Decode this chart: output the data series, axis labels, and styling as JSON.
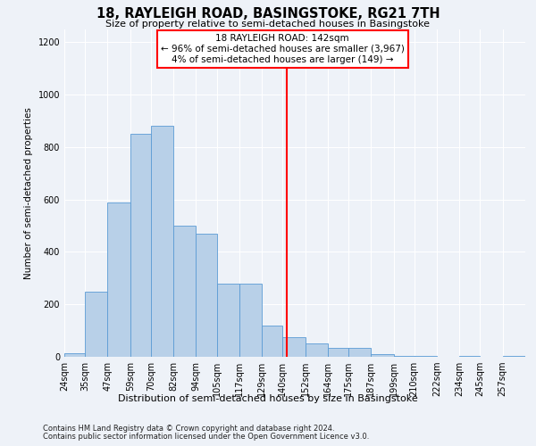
{
  "title": "18, RAYLEIGH ROAD, BASINGSTOKE, RG21 7TH",
  "subtitle": "Size of property relative to semi-detached houses in Basingstoke",
  "xlabel": "Distribution of semi-detached houses by size in Basingstoke",
  "ylabel": "Number of semi-detached properties",
  "footer1": "Contains HM Land Registry data © Crown copyright and database right 2024.",
  "footer2": "Contains public sector information licensed under the Open Government Licence v3.0.",
  "annotation_title": "18 RAYLEIGH ROAD: 142sqm",
  "annotation_line1": "← 96% of semi-detached houses are smaller (3,967)",
  "annotation_line2": "4% of semi-detached houses are larger (149) →",
  "property_size": 142,
  "bin_labels": [
    "24sqm",
    "35sqm",
    "47sqm",
    "59sqm",
    "70sqm",
    "82sqm",
    "94sqm",
    "105sqm",
    "117sqm",
    "129sqm",
    "140sqm",
    "152sqm",
    "164sqm",
    "175sqm",
    "187sqm",
    "199sqm",
    "210sqm",
    "222sqm",
    "234sqm",
    "245sqm",
    "257sqm"
  ],
  "bin_edges": [
    24,
    35,
    47,
    59,
    70,
    82,
    94,
    105,
    117,
    129,
    140,
    152,
    164,
    175,
    187,
    199,
    210,
    222,
    234,
    245,
    257
  ],
  "bar_heights": [
    15,
    250,
    590,
    850,
    880,
    500,
    470,
    280,
    280,
    120,
    75,
    50,
    35,
    35,
    10,
    5,
    5,
    0,
    5,
    0,
    5
  ],
  "bar_color": "#b8d0e8",
  "bar_edge_color": "#5b9bd5",
  "vline_x": 142,
  "vline_color": "red",
  "bg_color": "#eef2f8",
  "grid_color": "#ffffff",
  "ylim": [
    0,
    1250
  ],
  "yticks": [
    0,
    200,
    400,
    600,
    800,
    1000,
    1200
  ],
  "title_fontsize": 10.5,
  "subtitle_fontsize": 8,
  "ylabel_fontsize": 7.5,
  "xlabel_fontsize": 8,
  "tick_fontsize": 7,
  "footer_fontsize": 6,
  "annot_fontsize": 7.5
}
